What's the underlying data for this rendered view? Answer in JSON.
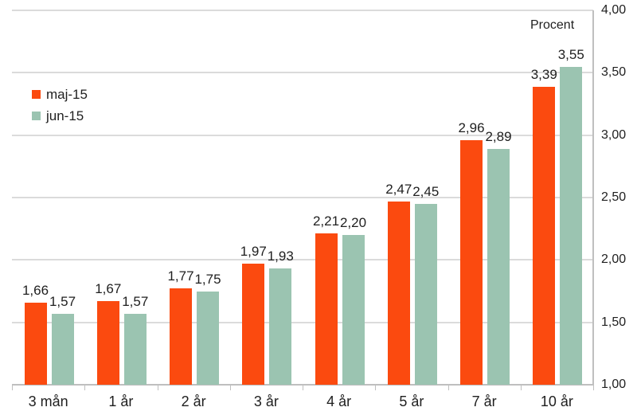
{
  "chart_data": {
    "type": "bar",
    "title": "",
    "unit_label": "Procent",
    "categories": [
      "3 mån",
      "1 år",
      "2 år",
      "3 år",
      "4 år",
      "5 år",
      "7 år",
      "10 år"
    ],
    "series": [
      {
        "name": "maj-15",
        "color": "#FB4A0F",
        "values": [
          1.66,
          1.67,
          1.77,
          1.97,
          2.21,
          2.47,
          2.96,
          3.39
        ],
        "value_labels": [
          "1,66",
          "1,67",
          "1,77",
          "1,97",
          "2,21",
          "2,47",
          "2,96",
          "3,39"
        ]
      },
      {
        "name": "jun-15",
        "color": "#9BC4B1",
        "values": [
          1.57,
          1.57,
          1.75,
          1.93,
          2.2,
          2.45,
          2.89,
          3.55
        ],
        "value_labels": [
          "1,57",
          "1,57",
          "1,75",
          "1,93",
          "2,20",
          "2,45",
          "2,89",
          "3,55"
        ]
      }
    ],
    "y_axis": {
      "side": "right",
      "min": 1.0,
      "max": 4.0,
      "step": 0.5,
      "tick_labels": [
        "1,00",
        "1,50",
        "2,00",
        "2,50",
        "3,00",
        "3,50",
        "4,00"
      ]
    },
    "legend_position": "top-left",
    "grid": true
  },
  "colors": {
    "gridline": "#DBDBDB",
    "axis": "#BFBFBF",
    "text": "#1F1F1F"
  }
}
